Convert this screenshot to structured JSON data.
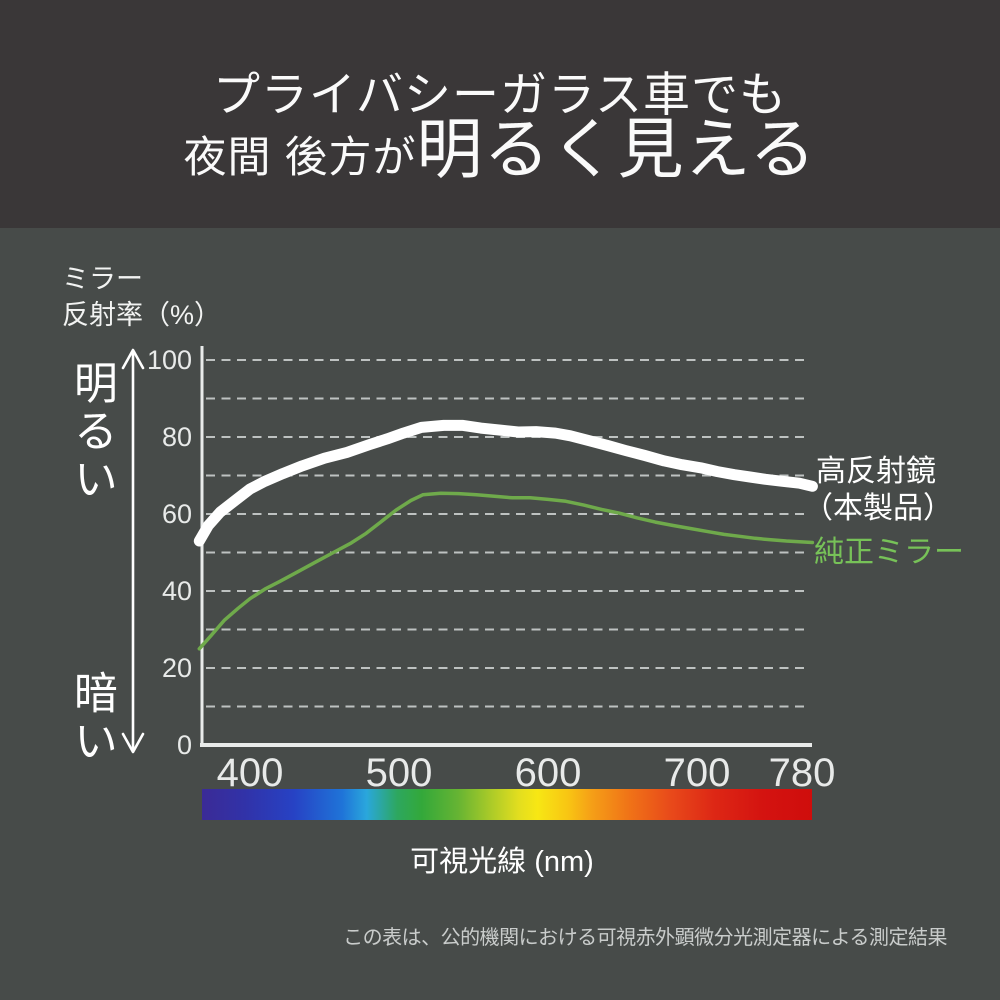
{
  "header": {
    "line1": "プライバシーガラス車でも",
    "line2_small": "夜間 後方が",
    "line2_large": "明るく見える"
  },
  "axis_title": "ミラー\n反射率（%）",
  "bright_label": "明るい",
  "dark_label": "暗い",
  "legend": {
    "series1_line1": "高反射鏡",
    "series1_line2": "（本製品）",
    "series2": "純正ミラー"
  },
  "x_axis_label": "可視光線 (nm)",
  "footer_note": "この表は、公的機関における可視赤外顕微分光測定器による測定結果",
  "colors": {
    "header_bg": "#3a3738",
    "body_bg": "#474b49",
    "series1": "#ffffff",
    "series2": "#6faa4b",
    "legend_green": "#77c258",
    "grid": "#c9cdcc",
    "axis": "#e9ebea"
  },
  "chart_data": {
    "type": "line",
    "xlabel": "可視光線 (nm)",
    "ylabel": "ミラー反射率（%）",
    "xlim": [
      366,
      789
    ],
    "ylim": [
      0,
      100
    ],
    "x_ticks": [
      400,
      500,
      600,
      700,
      780
    ],
    "y_ticks": [
      0,
      20,
      40,
      60,
      80,
      100
    ],
    "grid": "horizontal dashed every 10",
    "legend_position": "right",
    "series": [
      {
        "name": "高反射鏡（本製品）",
        "color": "#ffffff",
        "width": 11,
        "x": [
          366,
          372,
          380,
          390,
          400,
          410,
          422,
          435,
          450,
          465,
          480,
          492,
          503,
          515,
          530,
          543,
          555,
          568,
          580,
          592,
          605,
          615,
          628,
          640,
          652,
          665,
          678,
          690,
          702,
          715,
          728,
          740,
          752,
          765,
          778,
          788
        ],
        "y": [
          53,
          57,
          60.5,
          63.5,
          66.5,
          68.5,
          70.5,
          72.5,
          74.5,
          76,
          78,
          79.5,
          81,
          82.5,
          83,
          83,
          82.3,
          81.8,
          81.3,
          81.4,
          81,
          80.3,
          79,
          77.8,
          76.5,
          75.2,
          73.8,
          72.8,
          72,
          71,
          70.2,
          69.6,
          69,
          68.5,
          68,
          67.2
        ]
      },
      {
        "name": "純正ミラー",
        "color": "#6faa4b",
        "width": 3.5,
        "x": [
          366,
          374,
          383,
          392,
          400,
          410,
          420,
          432,
          444,
          456,
          468,
          478,
          488,
          498,
          508,
          516,
          528,
          540,
          552,
          564,
          576,
          588,
          600,
          612,
          624,
          636,
          648,
          660,
          672,
          684,
          696,
          708,
          720,
          732,
          744,
          756,
          768,
          778,
          788
        ],
        "y": [
          25,
          28.5,
          32.5,
          35.5,
          38,
          40.5,
          42.5,
          45,
          47.5,
          50,
          52.5,
          55,
          58,
          61,
          63.5,
          65,
          65.4,
          65.3,
          65,
          64.6,
          64.2,
          64.2,
          63.8,
          63.3,
          62.3,
          61.2,
          60.2,
          59,
          57.9,
          57,
          56.2,
          55.4,
          54.7,
          54.2,
          53.7,
          53.3,
          53,
          52.8,
          52.6
        ]
      }
    ]
  }
}
